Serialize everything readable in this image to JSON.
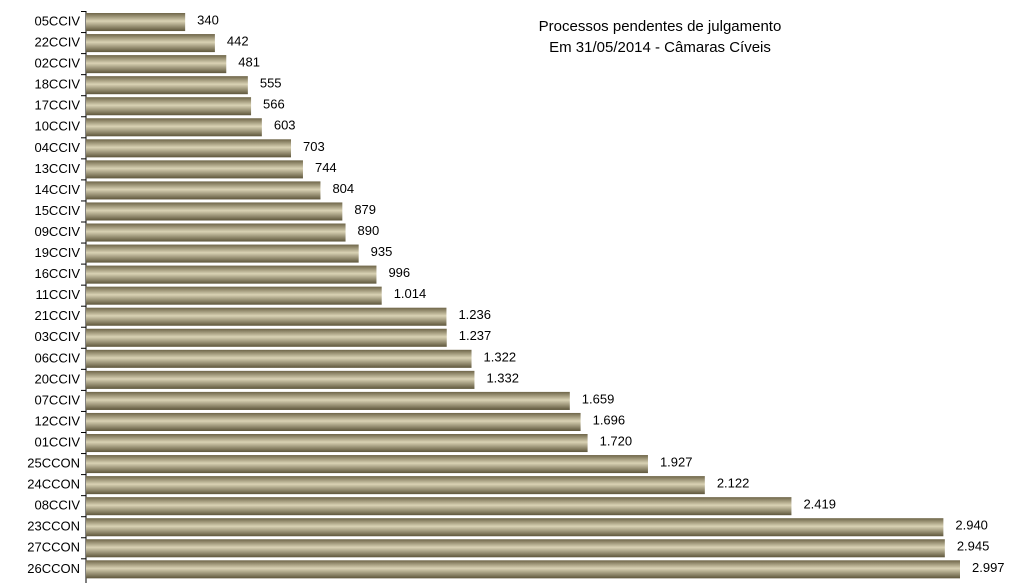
{
  "chart_data": {
    "type": "hbar",
    "title": "Processos pendentes de julgamento",
    "subtitle": "Em 31/05/2014 - Câmaras Cíveis",
    "categories": [
      "05CCIV",
      "22CCIV",
      "02CCIV",
      "18CCIV",
      "17CCIV",
      "10CCIV",
      "04CCIV",
      "13CCIV",
      "14CCIV",
      "15CCIV",
      "09CCIV",
      "19CCIV",
      "16CCIV",
      "11CCIV",
      "21CCIV",
      "03CCIV",
      "06CCIV",
      "20CCIV",
      "07CCIV",
      "12CCIV",
      "01CCIV",
      "25CCON",
      "24CCON",
      "08CCIV",
      "23CCON",
      "27CCON",
      "26CCON"
    ],
    "values": [
      340,
      442,
      481,
      555,
      566,
      603,
      703,
      744,
      804,
      879,
      890,
      935,
      996,
      1014,
      1236,
      1237,
      1322,
      1332,
      1659,
      1696,
      1720,
      1927,
      2122,
      2419,
      2940,
      2945,
      2997
    ],
    "value_labels": [
      "340",
      "442",
      "481",
      "555",
      "566",
      "603",
      "703",
      "744",
      "804",
      "879",
      "890",
      "935",
      "996",
      "1.014",
      "1.236",
      "1.237",
      "1.322",
      "1.332",
      "1.659",
      "1.696",
      "1.720",
      "1.927",
      "2.122",
      "2.419",
      "2.940",
      "2.945",
      "2.997"
    ],
    "color": "#a39a76"
  }
}
